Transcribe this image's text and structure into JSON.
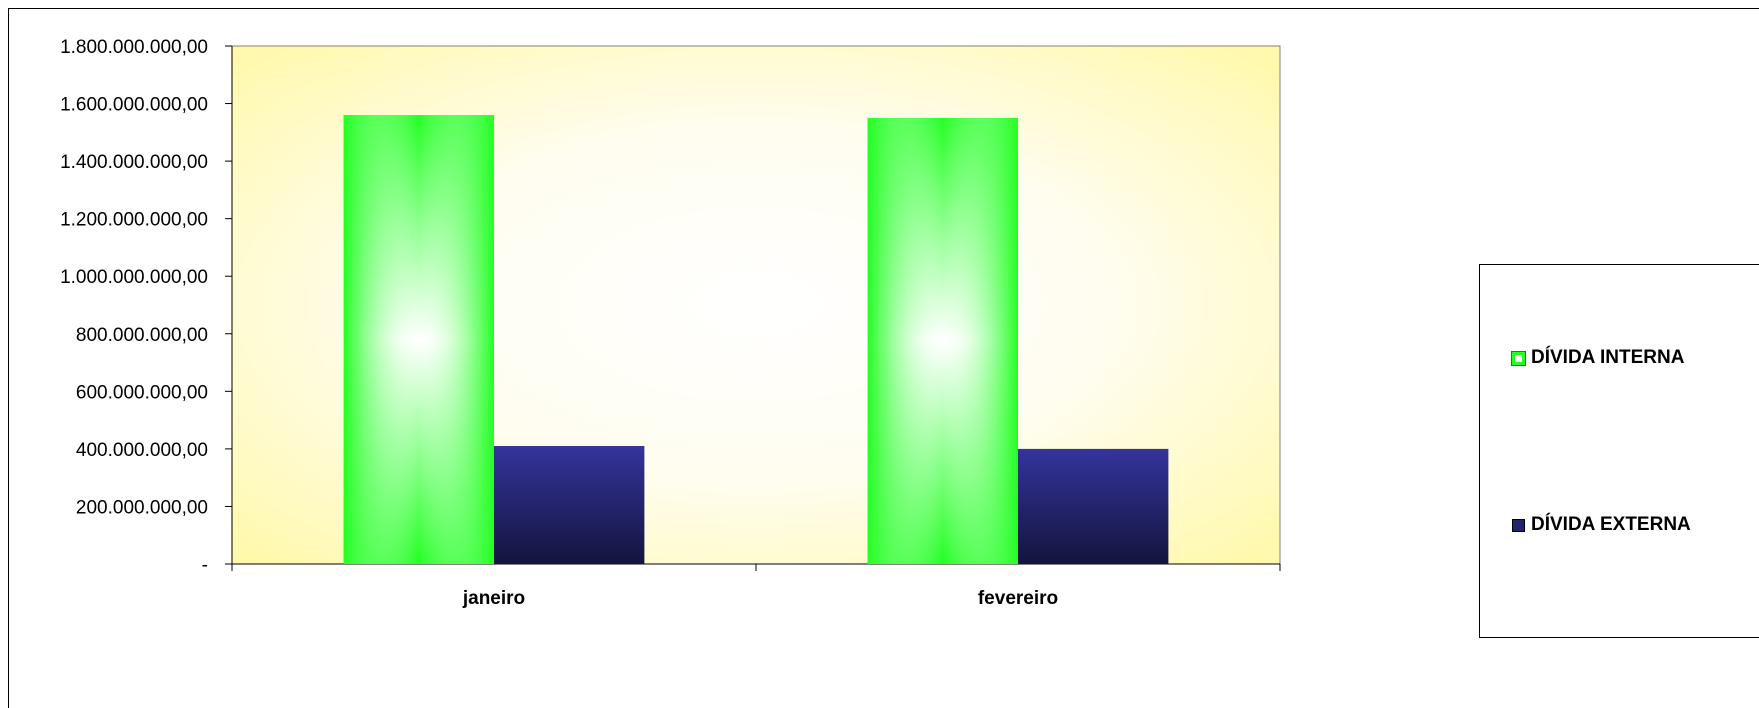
{
  "chart_data": {
    "type": "bar",
    "categories": [
      "janeiro",
      "fevereiro"
    ],
    "series": [
      {
        "name": "DÍVIDA INTERNA",
        "values": [
          1560000000,
          1550000000
        ]
      },
      {
        "name": "DÍVIDA EXTERNA",
        "values": [
          410000000,
          400000000
        ]
      }
    ],
    "ylim": [
      0,
      1800000000
    ],
    "yticks": [
      0,
      200000000,
      400000000,
      600000000,
      800000000,
      1000000000,
      1200000000,
      1400000000,
      1600000000,
      1800000000
    ],
    "ytick_labels": [
      "-",
      "200.000.000,00",
      "400.000.000,00",
      "600.000.000,00",
      "800.000.000,00",
      "1.000.000.000,00",
      "1.200.000.000,00",
      "1.400.000.000,00",
      "1.600.000.000,00",
      "1.800.000.000,00"
    ],
    "title": "",
    "xlabel": "",
    "ylabel": "",
    "grid": false,
    "legend_position": "right",
    "colors": {
      "interna": "#22ff22",
      "externa": "#24246e",
      "plot_bg": "#fffbcc"
    }
  },
  "legend": {
    "interna_label": "DÍVIDA INTERNA",
    "externa_label": "DÍVIDA EXTERNA"
  }
}
